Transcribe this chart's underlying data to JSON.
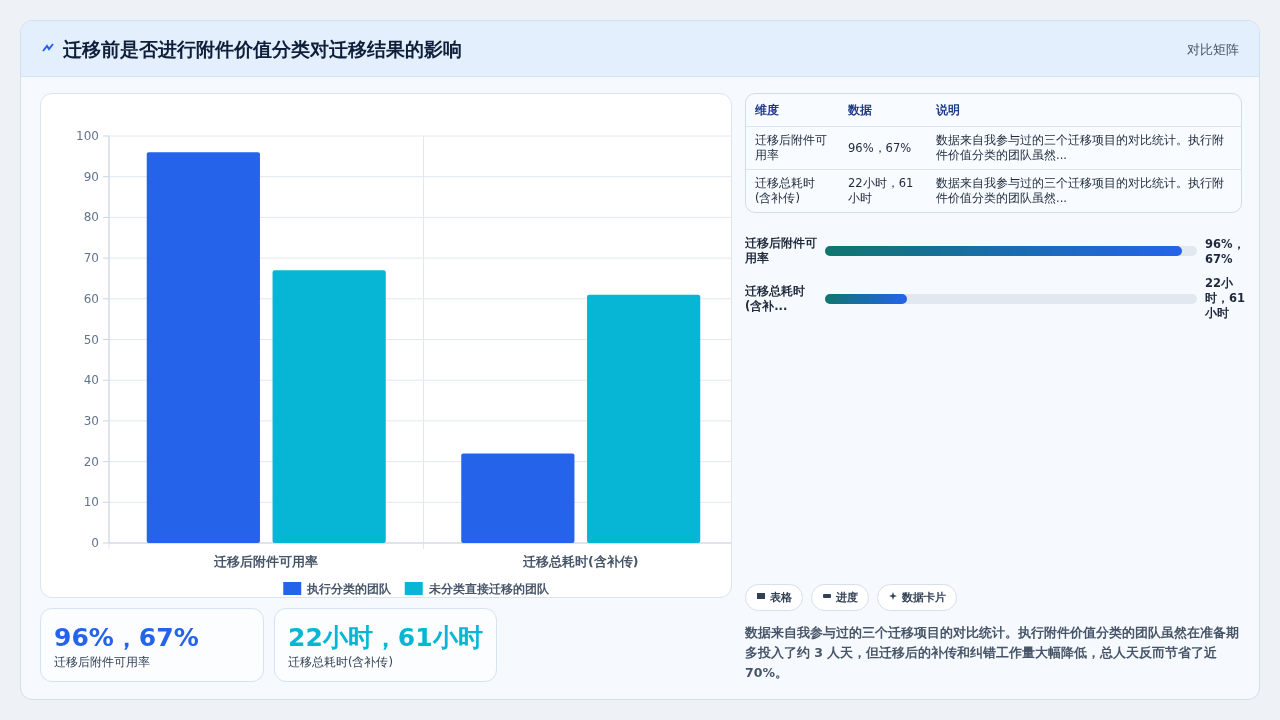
{
  "chart_data": [
    {
      "type": "other",
      "title": "迁移前是否进行附件价值分类对迁移结果的影响",
      "subtitle": "对比矩阵"
    },
    {
      "type": "bar",
      "categories": [
        "迁移后附件可用率",
        "迁移总耗时(含补传)"
      ],
      "series": [
        {
          "name": "执行分类的团队",
          "color": "#2563eb",
          "values": [
            96,
            22
          ]
        },
        {
          "name": "未分类直接迁移的团队",
          "color": "#06b6d4",
          "values": [
            67,
            61
          ]
        }
      ],
      "ylim": [
        0,
        100
      ],
      "yticks": [
        0,
        10,
        20,
        30,
        40,
        50,
        60,
        70,
        80,
        90,
        100
      ],
      "grid": true,
      "legend": "bottom"
    },
    {
      "type": "other",
      "annotations": [
        "维度",
        "数据",
        "说明",
        "迁移后附件可用率",
        "96%，67%",
        "数据来自我参与过的三个迁移项目的对比统计。执行附件价值分类的团队虽然...",
        "迁移总耗时(含补传)",
        "22小时，61小时",
        "数据来自我参与过的三个迁移项目的对比统计。执行附件价值分类的团队虽然..."
      ]
    },
    {
      "type": "bar",
      "orientation": "horizontal",
      "color": "#2563eb",
      "categories": [
        "迁移后附件可用率",
        "迁移总耗时(含补..."
      ],
      "values": [
        96,
        22
      ],
      "xlim": [
        0,
        100
      ],
      "value_labels": [
        "96%，67%",
        "22小时，61小时"
      ]
    },
    {
      "type": "other",
      "annotations": [
        "96%，67%",
        "迁移后附件可用率",
        "22小时，61小时",
        "迁移总耗时(含补传)",
        "表格",
        "进度",
        "数据卡片",
        "数据来自我参与过的三个迁移项目的对比统计。执行附件价值分类的团队虽然在准备期多投入了约 3 人天，但迁移后的补传和纠错工作量大幅降低，总人天反而节省了近 70%。"
      ]
    }
  ]
}
